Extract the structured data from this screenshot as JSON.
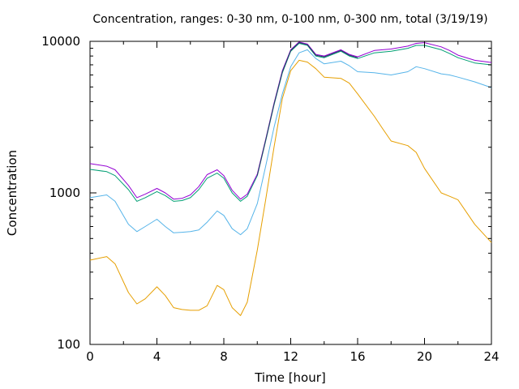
{
  "chart_data": {
    "type": "line",
    "title": "Concentration, ranges: 0-30 nm, 0-100 nm, 0-300 nm, total (3/19/19)",
    "xlabel": "Time [hour]",
    "ylabel": "Concentration",
    "xlim": [
      0,
      24
    ],
    "ylim": [
      100,
      10000
    ],
    "yscale": "log",
    "grid": false,
    "legend": "none",
    "x_ticks": [
      0,
      4,
      8,
      12,
      16,
      20,
      24
    ],
    "x_tick_labels": [
      "0",
      "4",
      "8",
      "12",
      "16",
      "20",
      "24"
    ],
    "y_ticks": [
      100,
      1000,
      10000
    ],
    "y_tick_labels": [
      "100",
      "1000",
      "10000"
    ],
    "series": [
      {
        "color": "#e69f00",
        "x": [
          0,
          1,
          1.5,
          2.3,
          2.8,
          3.3,
          4,
          4.5,
          5,
          5.5,
          6,
          6.5,
          7,
          7.6,
          8,
          8.5,
          9,
          9.4,
          10,
          10.5,
          11,
          11.5,
          12,
          12.5,
          13,
          13.5,
          14,
          15,
          15.5,
          16,
          17,
          17.5,
          18,
          19,
          19.5,
          20,
          21,
          21.5,
          22,
          23,
          24
        ],
        "y": [
          360,
          380,
          340,
          220,
          185,
          200,
          240,
          210,
          175,
          170,
          168,
          168,
          180,
          245,
          230,
          175,
          155,
          190,
          420,
          900,
          2000,
          4200,
          6400,
          7500,
          7300,
          6600,
          5800,
          5700,
          5300,
          4500,
          3200,
          2650,
          2200,
          2050,
          1850,
          1450,
          1000,
          950,
          900,
          620,
          470
        ]
      },
      {
        "color": "#56b4e9",
        "x": [
          0,
          1,
          1.5,
          2.3,
          2.8,
          3.3,
          4,
          4.5,
          5,
          5.5,
          6,
          6.5,
          7,
          7.6,
          8,
          8.5,
          9,
          9.4,
          10,
          10.5,
          11,
          11.5,
          12,
          12.5,
          13,
          13.5,
          14,
          15,
          15.5,
          16,
          17,
          17.5,
          18,
          19,
          19.5,
          20,
          21,
          21.5,
          22,
          23,
          24
        ],
        "y": [
          930,
          970,
          880,
          620,
          555,
          600,
          670,
          600,
          545,
          550,
          555,
          570,
          640,
          760,
          710,
          580,
          530,
          580,
          850,
          1500,
          2700,
          4500,
          6800,
          8400,
          8800,
          7700,
          7100,
          7400,
          6900,
          6300,
          6200,
          6100,
          6000,
          6300,
          6800,
          6600,
          6100,
          6000,
          5800,
          5400,
          4950
        ]
      },
      {
        "color": "#009e73",
        "x": [
          0,
          1,
          1.5,
          2.3,
          2.8,
          3.3,
          4,
          4.5,
          5,
          5.5,
          6,
          6.5,
          7,
          7.6,
          8,
          8.5,
          9,
          9.4,
          10,
          10.5,
          11,
          11.5,
          12,
          12.5,
          13,
          13.5,
          14,
          15,
          15.5,
          16,
          17,
          17.5,
          18,
          19,
          19.5,
          20,
          21,
          21.5,
          22,
          23,
          24
        ],
        "y": [
          1430,
          1380,
          1300,
          1050,
          880,
          930,
          1020,
          960,
          880,
          890,
          930,
          1050,
          1250,
          1350,
          1250,
          1000,
          880,
          950,
          1300,
          2200,
          3800,
          6200,
          8600,
          9700,
          9400,
          8000,
          7800,
          8600,
          8000,
          7700,
          8400,
          8500,
          8600,
          9000,
          9400,
          9400,
          8800,
          8300,
          7800,
          7200,
          7000
        ]
      },
      {
        "color": "#9400d3",
        "x": [
          0,
          1,
          1.5,
          2.3,
          2.8,
          3.3,
          4,
          4.5,
          5,
          5.5,
          6,
          6.5,
          7,
          7.6,
          8,
          8.5,
          9,
          9.4,
          10,
          10.5,
          11,
          11.5,
          12,
          12.5,
          13,
          13.5,
          14,
          15,
          15.5,
          16,
          17,
          17.5,
          18,
          19,
          19.5,
          20,
          21,
          21.5,
          22,
          23,
          24
        ],
        "y": [
          1560,
          1500,
          1420,
          1120,
          930,
          980,
          1070,
          1000,
          910,
          920,
          970,
          1100,
          1320,
          1420,
          1300,
          1040,
          910,
          980,
          1330,
          2250,
          3900,
          6400,
          8800,
          9900,
          9600,
          8200,
          8000,
          8800,
          8200,
          7900,
          8700,
          8800,
          8900,
          9300,
          9700,
          9800,
          9200,
          8700,
          8100,
          7500,
          7250
        ]
      },
      {
        "color": "#2a3a6a",
        "x": [
          10,
          10.5,
          11,
          11.5,
          12,
          12.5,
          13,
          13.5,
          14,
          15,
          15.5,
          16
        ],
        "y": [
          1310,
          2230,
          3850,
          6300,
          8700,
          9800,
          9500,
          8100,
          7900,
          8700,
          8100,
          7800
        ]
      }
    ]
  }
}
